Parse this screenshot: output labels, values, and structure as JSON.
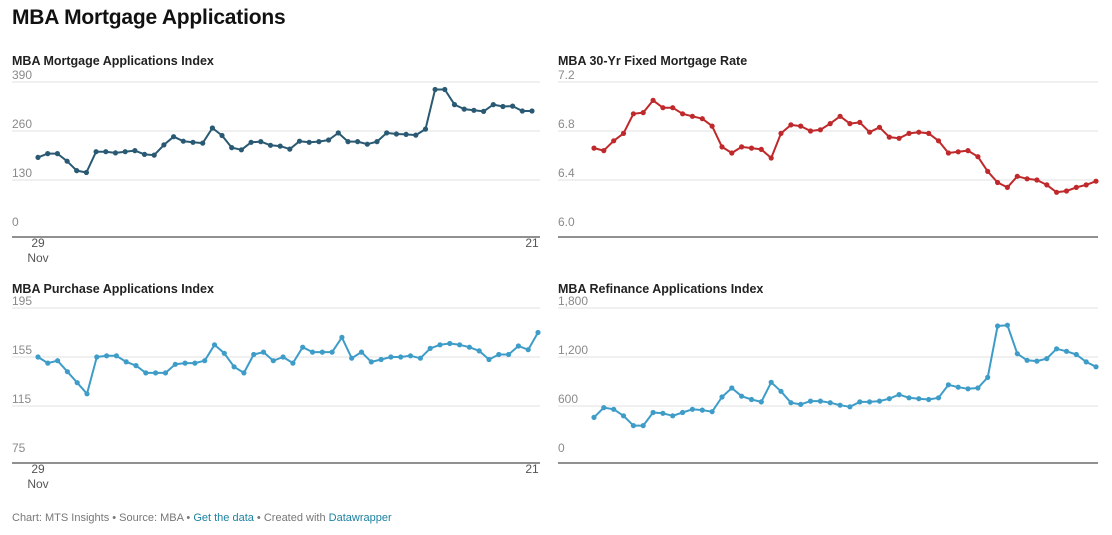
{
  "page_title": "MBA Mortgage Applications",
  "footer": {
    "prefix": "Chart: MTS Insights • Source: MBA • ",
    "get_data": "Get the data",
    "middle": " • Created with ",
    "datawrapper": "Datawrapper"
  },
  "x_tick_labels": {
    "first_day": "29",
    "first_month": "Nov",
    "last_day": "21"
  },
  "chart_data": [
    {
      "type": "line",
      "title": "MBA Mortgage Applications Index",
      "color": "#2a5a73",
      "y_ticks": [
        0,
        130,
        260,
        390
      ],
      "y_tick_labels": [
        "0",
        "130",
        "260",
        "390"
      ],
      "ylim": [
        0,
        390
      ],
      "values": [
        190,
        200,
        200,
        180,
        155,
        150,
        205,
        205,
        202,
        205,
        208,
        198,
        196,
        223,
        245,
        233,
        230,
        228,
        268,
        248,
        216,
        210,
        230,
        232,
        222,
        220,
        212,
        233,
        230,
        232,
        236,
        255,
        232,
        232,
        225,
        232,
        255,
        252,
        251,
        249,
        265,
        370,
        370,
        330,
        318,
        315,
        312,
        330,
        325,
        326,
        313,
        313
      ]
    },
    {
      "type": "line",
      "title": "MBA 30-Yr Fixed Mortgage Rate",
      "color": "#c0292b",
      "y_ticks": [
        6.0,
        6.4,
        6.8,
        7.2
      ],
      "y_tick_labels": [
        "6.0",
        "6.4",
        "6.8",
        "7.2"
      ],
      "ylim": [
        6.0,
        7.2
      ],
      "values": [
        6.66,
        6.64,
        6.72,
        6.78,
        6.94,
        6.95,
        7.05,
        6.99,
        6.99,
        6.94,
        6.92,
        6.9,
        6.84,
        6.67,
        6.62,
        6.67,
        6.66,
        6.65,
        6.58,
        6.78,
        6.85,
        6.84,
        6.8,
        6.81,
        6.86,
        6.92,
        6.86,
        6.87,
        6.79,
        6.83,
        6.75,
        6.74,
        6.78,
        6.79,
        6.78,
        6.72,
        6.62,
        6.63,
        6.64,
        6.59,
        6.47,
        6.38,
        6.34,
        6.43,
        6.41,
        6.4,
        6.36,
        6.3,
        6.31,
        6.34,
        6.36,
        6.39
      ]
    },
    {
      "type": "line",
      "title": "MBA Purchase Applications Index",
      "color": "#3e9dc8",
      "y_ticks": [
        75,
        115,
        155,
        195
      ],
      "y_tick_labels": [
        "75",
        "115",
        "155",
        "195"
      ],
      "ylim": [
        75,
        195
      ],
      "values": [
        155,
        150,
        152,
        143,
        134,
        125,
        155,
        156,
        156,
        151,
        148,
        142,
        142,
        142,
        149,
        150,
        150,
        152,
        165,
        158,
        147,
        142,
        157,
        159,
        152,
        155,
        150,
        163,
        159,
        159,
        159,
        171,
        154,
        159,
        151,
        153,
        155,
        155,
        156,
        154,
        162,
        165,
        166,
        165,
        163,
        160,
        153,
        157,
        157,
        164,
        161,
        175
      ]
    },
    {
      "type": "line",
      "title": "MBA Refinance Applications Index",
      "color": "#3e9dc8",
      "y_ticks": [
        0,
        600,
        1200,
        1800
      ],
      "y_tick_labels": [
        "0",
        "600",
        "1,200",
        "1,800"
      ],
      "ylim": [
        0,
        1800
      ],
      "values": [
        460,
        580,
        560,
        480,
        360,
        360,
        520,
        510,
        480,
        520,
        560,
        550,
        530,
        710,
        820,
        720,
        680,
        650,
        890,
        780,
        640,
        620,
        660,
        660,
        640,
        610,
        590,
        650,
        650,
        660,
        690,
        740,
        700,
        690,
        680,
        700,
        860,
        830,
        810,
        820,
        950,
        1580,
        1590,
        1240,
        1160,
        1150,
        1180,
        1300,
        1270,
        1230,
        1140,
        1080
      ]
    }
  ]
}
